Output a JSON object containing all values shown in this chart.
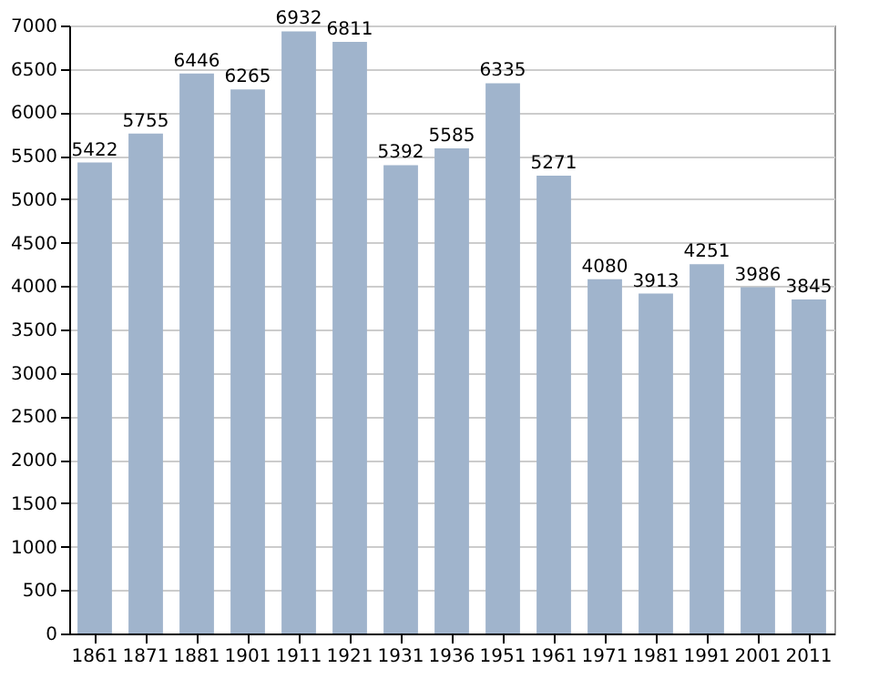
{
  "chart_data": {
    "type": "bar",
    "categories": [
      "1861",
      "1871",
      "1881",
      "1901",
      "1911",
      "1921",
      "1931",
      "1936",
      "1951",
      "1961",
      "1971",
      "1981",
      "1991",
      "2001",
      "2011"
    ],
    "values": [
      5422,
      5755,
      6446,
      6265,
      6932,
      6811,
      5392,
      5585,
      6335,
      5271,
      4080,
      3913,
      4251,
      3986,
      3845
    ],
    "color": "#a0b4cc",
    "ylim": [
      0,
      7000
    ],
    "yticks": [
      0,
      500,
      1000,
      1500,
      2000,
      2500,
      3000,
      3500,
      4000,
      4500,
      5000,
      5500,
      6000,
      6500,
      7000
    ],
    "grid": "y",
    "data_labels": true
  }
}
